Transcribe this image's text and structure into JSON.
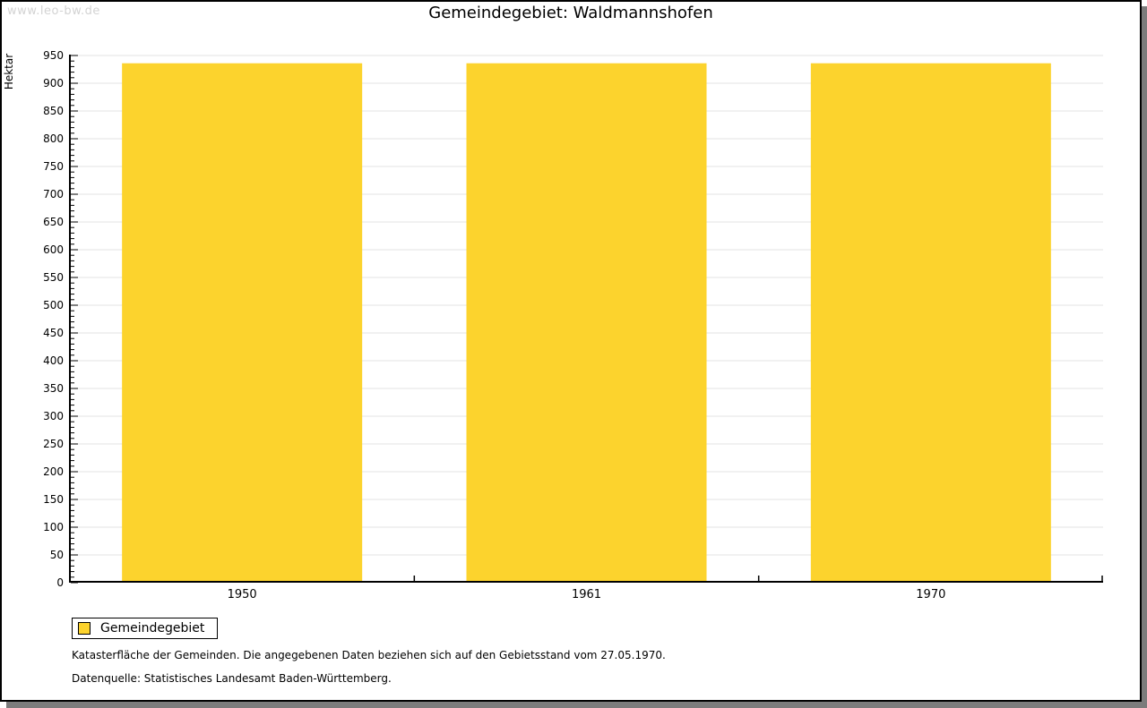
{
  "watermark": "www.leo-bw.de",
  "title": "Gemeindegebiet: Waldmannshofen",
  "chart_data": {
    "type": "bar",
    "title": "Gemeindegebiet: Waldmannshofen",
    "categories": [
      "1950",
      "1961",
      "1970"
    ],
    "series": [
      {
        "name": "Gemeindegebiet",
        "values": [
          936,
          936,
          936
        ]
      }
    ],
    "xlabel": "",
    "ylabel": "Hektar",
    "ylim": [
      0,
      950
    ],
    "y_major_step": 50,
    "y_minor_step": 10,
    "grid": true,
    "bar_color": "#FCD32D",
    "grid_color": "#e3e3e3",
    "axis_color": "#000000",
    "legend_position": "bottom-left"
  },
  "legend": {
    "items": [
      {
        "label": "Gemeindegebiet",
        "color": "#FCD32D"
      }
    ]
  },
  "footnotes": [
    "Katasterfläche der Gemeinden. Die angegebenen Daten beziehen sich auf den Gebietsstand vom 27.05.1970.",
    "Datenquelle: Statistisches Landesamt Baden-Württemberg."
  ]
}
